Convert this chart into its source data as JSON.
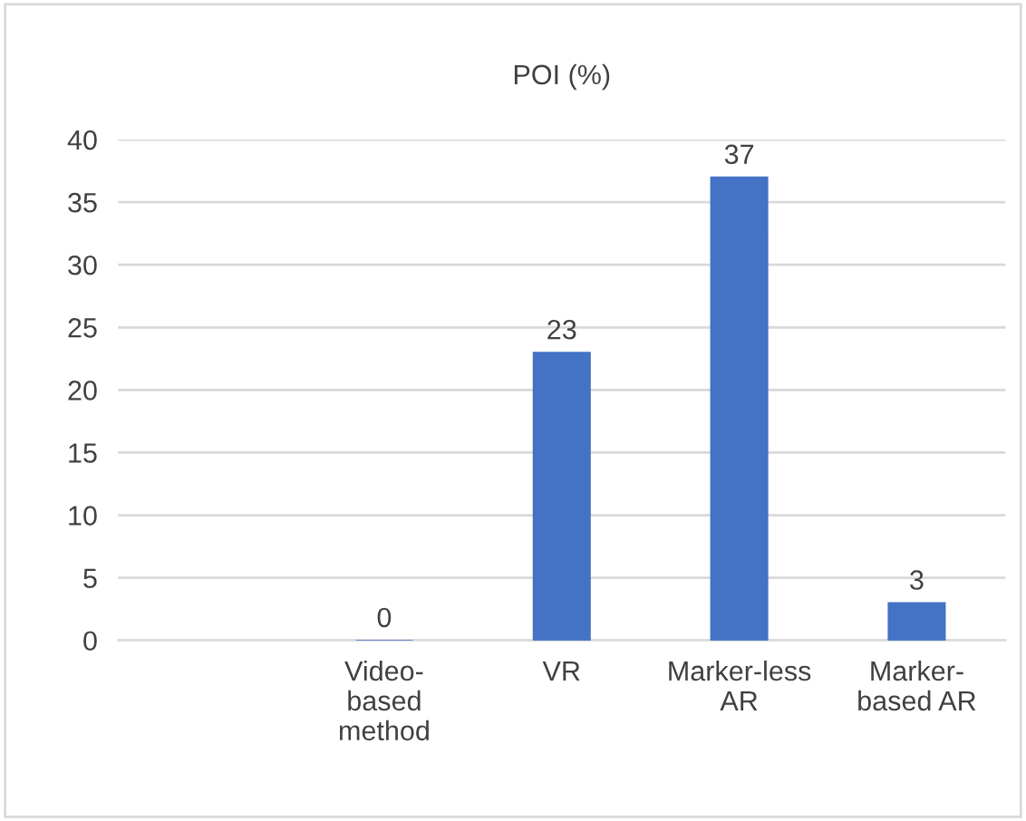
{
  "chart_data": {
    "type": "bar",
    "title": "POI (%)",
    "categories": [
      null,
      "Video-\nbased\nmethod",
      "VR",
      "Marker-less\nAR",
      "Marker-\nbased AR"
    ],
    "values": [
      null,
      0,
      23,
      37,
      3
    ],
    "color": "#4472c4",
    "ylim": [
      0,
      40
    ],
    "yticks": [
      0,
      5,
      10,
      15,
      20,
      25,
      30,
      35,
      40
    ],
    "grid": "y",
    "data_labels": true
  }
}
